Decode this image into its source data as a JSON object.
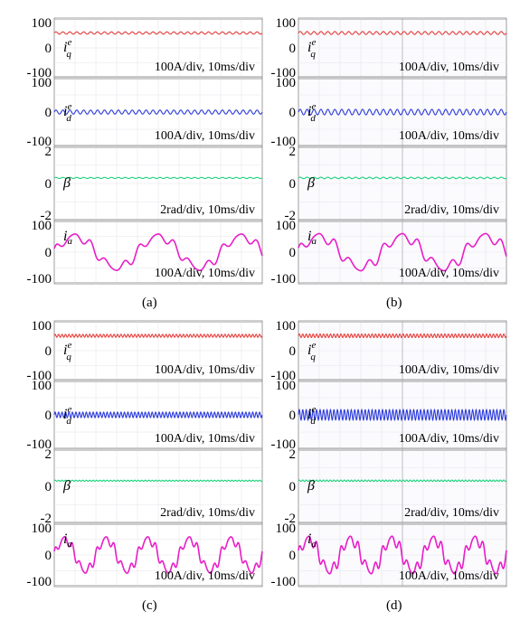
{
  "chart_data": [
    {
      "type": "line",
      "panel": "(a)",
      "caption": "(a)",
      "plots": [
        {
          "channel": "iq",
          "var": "i",
          "sub": "q",
          "sup": "e",
          "scale": "100A/div, 10ms/div",
          "y_ticks": [
            "100",
            "0",
            "-100"
          ],
          "ylim": [
            -100,
            100
          ],
          "color": "#e8413c",
          "series": {
            "name": "i_q^e",
            "type": "ripple",
            "offset": 50,
            "amplitude": 4,
            "ripple_freq_hz": 300,
            "xlim_ms": [
              0,
              100
            ]
          }
        },
        {
          "channel": "id",
          "var": "i",
          "sub": "d",
          "sup": "e",
          "scale": "100A/div, 10ms/div",
          "y_ticks": [
            "100",
            "0",
            "-100"
          ],
          "ylim": [
            -100,
            100
          ],
          "color": "#2b3bdc",
          "series": {
            "name": "i_d^e",
            "type": "ripple",
            "offset": 0,
            "amplitude": 6,
            "ripple_freq_hz": 300,
            "xlim_ms": [
              0,
              100
            ]
          }
        },
        {
          "channel": "beta",
          "var": "β",
          "sub": "",
          "sup": "",
          "scale": "2rad/div, 10ms/div",
          "y_ticks": [
            "2",
            "0",
            "-2"
          ],
          "ylim": [
            -2,
            2
          ],
          "color": "#18d27a",
          "series": {
            "name": "β",
            "type": "ripple",
            "offset": 0.3,
            "amplitude": 0.03,
            "ripple_freq_hz": 300,
            "xlim_ms": [
              0,
              100
            ]
          }
        },
        {
          "channel": "ia",
          "var": "i",
          "sub": "a",
          "sup": "",
          "scale": "100A/div, 10ms/div",
          "y_ticks": [
            "100",
            "0",
            "-100"
          ],
          "ylim": [
            -100,
            100
          ],
          "color": "#e81ec8",
          "series": {
            "name": "i_a",
            "type": "phase_current",
            "amplitude": 50,
            "fundamental_hz": 25,
            "harmonic_amplitude": 12,
            "xlim_ms": [
              0,
              100
            ]
          }
        }
      ]
    },
    {
      "type": "line",
      "panel": "(b)",
      "caption": "(b)",
      "plots": [
        {
          "channel": "iq",
          "var": "i",
          "sub": "q",
          "sup": "e",
          "scale": "100A/div, 10ms/div",
          "y_ticks": [
            "100",
            "0",
            "-100"
          ],
          "ylim": [
            -100,
            100
          ],
          "color": "#e8413c",
          "series": {
            "name": "i_q^e",
            "type": "ripple",
            "offset": 50,
            "amplitude": 5,
            "ripple_freq_hz": 300,
            "xlim_ms": [
              0,
              100
            ]
          }
        },
        {
          "channel": "id",
          "var": "i",
          "sub": "d",
          "sup": "e",
          "scale": "100A/div, 10ms/div",
          "y_ticks": [
            "100",
            "0",
            "-100"
          ],
          "ylim": [
            -100,
            100
          ],
          "color": "#2b3bdc",
          "series": {
            "name": "i_d^e",
            "type": "ripple",
            "offset": 0,
            "amplitude": 8,
            "ripple_freq_hz": 300,
            "xlim_ms": [
              0,
              100
            ]
          }
        },
        {
          "channel": "beta",
          "var": "β",
          "sub": "",
          "sup": "",
          "scale": "2rad/div, 10ms/div",
          "y_ticks": [
            "2",
            "0",
            "-2"
          ],
          "ylim": [
            -2,
            2
          ],
          "color": "#18d27a",
          "series": {
            "name": "β",
            "type": "ripple",
            "offset": 0.3,
            "amplitude": 0.04,
            "ripple_freq_hz": 300,
            "xlim_ms": [
              0,
              100
            ]
          }
        },
        {
          "channel": "ia",
          "var": "i",
          "sub": "a",
          "sup": "",
          "scale": "100A/div, 10ms/div",
          "y_ticks": [
            "100",
            "0",
            "-100"
          ],
          "ylim": [
            -100,
            100
          ],
          "color": "#e81ec8",
          "series": {
            "name": "i_a",
            "type": "phase_current",
            "amplitude": 50,
            "fundamental_hz": 25,
            "harmonic_amplitude": 14,
            "xlim_ms": [
              0,
              100
            ]
          }
        }
      ]
    },
    {
      "type": "line",
      "panel": "(c)",
      "caption": "(c)",
      "plots": [
        {
          "channel": "iq",
          "var": "i",
          "sub": "q",
          "sup": "e",
          "scale": "100A/div, 10ms/div",
          "y_ticks": [
            "100",
            "0",
            "-100"
          ],
          "ylim": [
            -100,
            100
          ],
          "color": "#e8413c",
          "series": {
            "name": "i_q^e",
            "type": "ripple",
            "offset": 50,
            "amplitude": 5,
            "ripple_freq_hz": 600,
            "xlim_ms": [
              0,
              100
            ]
          }
        },
        {
          "channel": "id",
          "var": "i",
          "sub": "d",
          "sup": "e",
          "scale": "100A/div, 10ms/div",
          "y_ticks": [
            "100",
            "0",
            "-100"
          ],
          "ylim": [
            -100,
            100
          ],
          "color": "#2b3bdc",
          "series": {
            "name": "i_d^e",
            "type": "ripple",
            "offset": 0,
            "amplitude": 8,
            "ripple_freq_hz": 600,
            "xlim_ms": [
              0,
              100
            ]
          }
        },
        {
          "channel": "beta",
          "var": "β",
          "sub": "",
          "sup": "",
          "scale": "2rad/div, 10ms/div",
          "y_ticks": [
            "2",
            "0",
            "-2"
          ],
          "ylim": [
            -2,
            2
          ],
          "color": "#18d27a",
          "series": {
            "name": "β",
            "type": "ripple",
            "offset": 0.3,
            "amplitude": 0.03,
            "ripple_freq_hz": 600,
            "xlim_ms": [
              0,
              100
            ]
          }
        },
        {
          "channel": "ia",
          "var": "i",
          "sub": "a",
          "sup": "",
          "scale": "100A/div, 10ms/div",
          "y_ticks": [
            "100",
            "0",
            "-100"
          ],
          "ylim": [
            -100,
            100
          ],
          "color": "#e81ec8",
          "series": {
            "name": "i_a",
            "type": "phase_current",
            "amplitude": 50,
            "fundamental_hz": 50,
            "harmonic_amplitude": 12,
            "xlim_ms": [
              0,
              100
            ]
          }
        }
      ]
    },
    {
      "type": "line",
      "panel": "(d)",
      "caption": "(d)",
      "plots": [
        {
          "channel": "iq",
          "var": "i",
          "sub": "q",
          "sup": "e",
          "scale": "100A/div, 10ms/div",
          "y_ticks": [
            "100",
            "0",
            "-100"
          ],
          "ylim": [
            -100,
            100
          ],
          "color": "#e8413c",
          "series": {
            "name": "i_q^e",
            "type": "ripple",
            "offset": 50,
            "amplitude": 6,
            "ripple_freq_hz": 600,
            "xlim_ms": [
              0,
              100
            ]
          }
        },
        {
          "channel": "id",
          "var": "i",
          "sub": "d",
          "sup": "e",
          "scale": "100A/div, 10ms/div",
          "y_ticks": [
            "100",
            "0",
            "-100"
          ],
          "ylim": [
            -100,
            100
          ],
          "color": "#2b3bdc",
          "series": {
            "name": "i_d^e",
            "type": "ripple",
            "offset": 0,
            "amplitude": 15,
            "ripple_freq_hz": 600,
            "xlim_ms": [
              0,
              100
            ]
          }
        },
        {
          "channel": "beta",
          "var": "β",
          "sub": "",
          "sup": "",
          "scale": "2rad/div, 10ms/div",
          "y_ticks": [
            "2",
            "0",
            "-2"
          ],
          "ylim": [
            -2,
            2
          ],
          "color": "#18d27a",
          "series": {
            "name": "β",
            "type": "ripple",
            "offset": 0.3,
            "amplitude": 0.04,
            "ripple_freq_hz": 600,
            "xlim_ms": [
              0,
              100
            ]
          }
        },
        {
          "channel": "ia",
          "var": "i",
          "sub": "a",
          "sup": "",
          "scale": "100A/div, 10ms/div",
          "y_ticks": [
            "100",
            "0",
            "-100"
          ],
          "ylim": [
            -100,
            100
          ],
          "color": "#e81ec8",
          "series": {
            "name": "i_a",
            "type": "phase_current",
            "amplitude": 50,
            "fundamental_hz": 50,
            "harmonic_amplitude": 15,
            "xlim_ms": [
              0,
              100
            ]
          }
        }
      ]
    }
  ]
}
